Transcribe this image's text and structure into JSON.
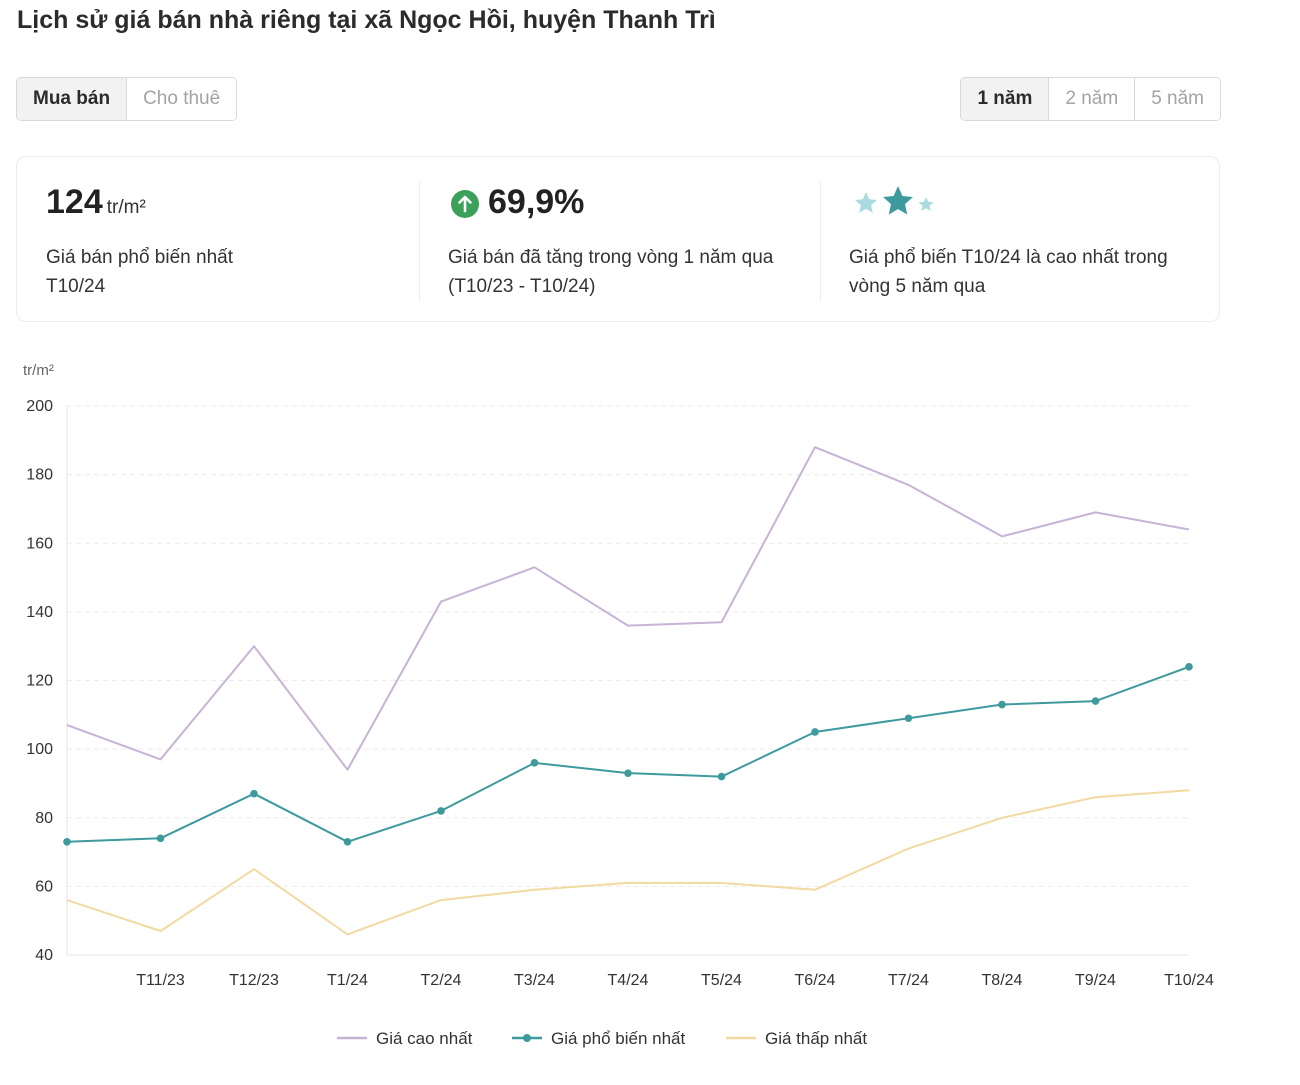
{
  "page": {
    "title": "Lịch sử giá bán nhà riêng tại xã Ngọc Hồi, huyện Thanh Trì"
  },
  "type_tabs": [
    {
      "label": "Mua bán",
      "active": true
    },
    {
      "label": "Cho thuê",
      "active": false
    }
  ],
  "period_tabs": [
    {
      "label": "1 năm",
      "active": true
    },
    {
      "label": "2 năm",
      "active": false
    },
    {
      "label": "5 năm",
      "active": false
    }
  ],
  "summary": {
    "popular_price": {
      "value": "124",
      "unit": "tr/m²",
      "desc_line1": "Giá bán phổ biến nhất",
      "desc_line2": "T10/24"
    },
    "change": {
      "value": "69,9%",
      "icon": "arrow-up-circle-icon",
      "color": "#3aa05a",
      "desc_line1": "Giá bán đã tăng trong vòng 1 năm qua",
      "desc_line2": "(T10/23 - T10/24)"
    },
    "rating": {
      "icon": "stars-icon",
      "desc_line1": "Giá phổ biến T10/24 là cao nhất trong",
      "desc_line2": "vòng 5 năm qua"
    }
  },
  "chart_data": {
    "type": "line",
    "ylabel": "tr/m²",
    "ylim": [
      40,
      200
    ],
    "yticks": [
      40,
      60,
      80,
      100,
      120,
      140,
      160,
      180,
      200
    ],
    "categories": [
      "T10/23",
      "T11/23",
      "T12/23",
      "T1/24",
      "T2/24",
      "T3/24",
      "T4/24",
      "T5/24",
      "T6/24",
      "T7/24",
      "T8/24",
      "T9/24",
      "T10/24"
    ],
    "x_tick_labels": [
      "",
      "T11/23",
      "T12/23",
      "T1/24",
      "T2/24",
      "T3/24",
      "T4/24",
      "T5/24",
      "T6/24",
      "T7/24",
      "T8/24",
      "T9/24",
      "T10/24"
    ],
    "grid": true,
    "legend_position": "bottom",
    "series": [
      {
        "name": "Giá cao nhất",
        "color": "#c7b3d6",
        "markers": false,
        "values": [
          107,
          97,
          130,
          94,
          143,
          153,
          136,
          137,
          188,
          177,
          162,
          169,
          164
        ]
      },
      {
        "name": "Giá phổ biến nhất",
        "color": "#3f9a9e",
        "markers": true,
        "values": [
          73,
          74,
          87,
          73,
          82,
          96,
          93,
          92,
          105,
          109,
          113,
          114,
          124
        ]
      },
      {
        "name": "Giá thấp nhất",
        "color": "#f3d9a2",
        "markers": false,
        "values": [
          56,
          47,
          65,
          46,
          56,
          59,
          61,
          61,
          59,
          71,
          80,
          86,
          88
        ]
      }
    ]
  }
}
